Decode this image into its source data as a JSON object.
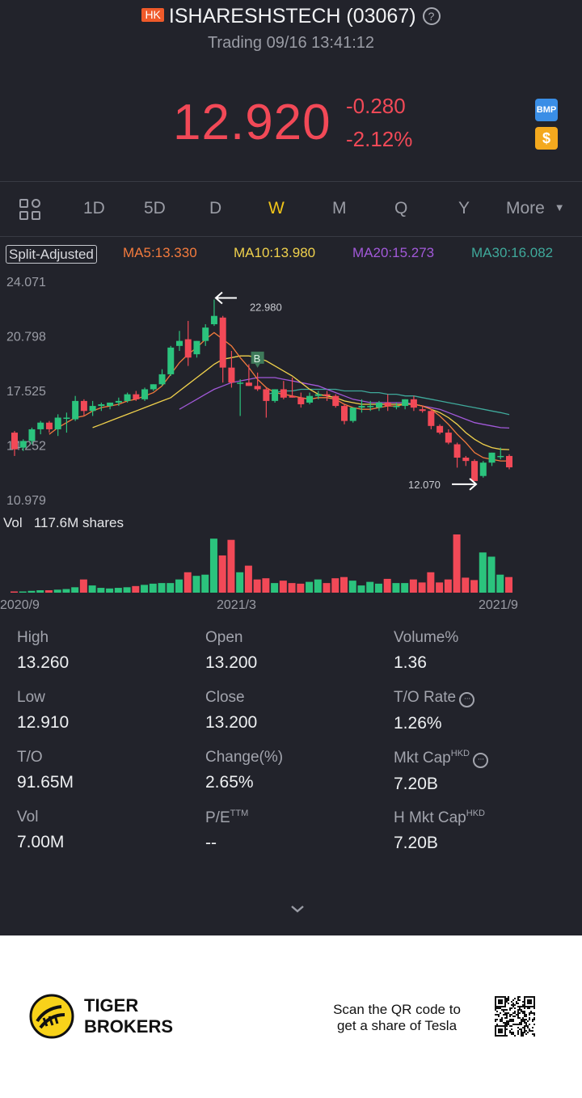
{
  "header": {
    "market_badge": "HK",
    "title": "ISHARESHSTECH (03067)",
    "status": "Trading 09/16 13:41:12",
    "price": "12.920",
    "change": "-0.280",
    "change_pct": "-2.12%",
    "bmp_label": "BMP",
    "dollar_label": "$"
  },
  "tabs": [
    "1D",
    "5D",
    "D",
    "W",
    "M",
    "Q",
    "Y",
    "More"
  ],
  "active_tab": "W",
  "indicators": {
    "split": "Split-Adjusted",
    "ma5": "MA5:13.330",
    "ma10": "MA10:13.980",
    "ma20": "MA20:15.273",
    "ma30": "MA30:16.082"
  },
  "chart_data": {
    "type": "candlestick",
    "y_ticks": [
      "24.071",
      "20.798",
      "17.525",
      "14.252",
      "10.979"
    ],
    "ylim": [
      10.979,
      24.071
    ],
    "high_label": "22.980",
    "low_label": "12.070",
    "buy_marker": "B",
    "x_ticks": [
      "2020/9",
      "2021/3",
      "2021/9"
    ],
    "colors": {
      "up": "#2bc37d",
      "down": "#f24957",
      "ma5": "#f47b3d",
      "ma10": "#f0d14c",
      "ma20": "#a259d9",
      "ma30": "#3fa99b"
    },
    "candles": [
      [
        15.0,
        15.1,
        13.6,
        14.0
      ],
      [
        14.1,
        14.6,
        13.9,
        14.5
      ],
      [
        14.5,
        15.3,
        14.3,
        15.2
      ],
      [
        15.2,
        15.7,
        14.9,
        15.6
      ],
      [
        15.6,
        15.7,
        15.0,
        15.2
      ],
      [
        15.2,
        16.1,
        14.8,
        15.9
      ],
      [
        15.9,
        16.2,
        15.0,
        15.9
      ],
      [
        15.8,
        17.2,
        15.7,
        16.9
      ],
      [
        16.9,
        17.0,
        16.0,
        16.3
      ],
      [
        16.3,
        16.9,
        16.0,
        16.6
      ],
      [
        16.6,
        16.8,
        16.3,
        16.7
      ],
      [
        16.6,
        16.8,
        16.4,
        16.8
      ],
      [
        16.8,
        17.1,
        16.6,
        16.9
      ],
      [
        16.9,
        17.4,
        16.8,
        17.3
      ],
      [
        17.3,
        17.5,
        16.9,
        17.0
      ],
      [
        17.0,
        17.7,
        16.9,
        17.6
      ],
      [
        17.6,
        17.9,
        17.5,
        17.9
      ],
      [
        17.9,
        18.8,
        17.8,
        18.5
      ],
      [
        18.5,
        20.2,
        18.4,
        20.1
      ],
      [
        20.2,
        21.1,
        19.9,
        20.5
      ],
      [
        20.6,
        21.7,
        19.0,
        19.5
      ],
      [
        19.7,
        20.5,
        19.5,
        20.5
      ],
      [
        20.5,
        21.5,
        20.2,
        21.3
      ],
      [
        21.5,
        22.98,
        21.4,
        22.0
      ],
      [
        21.9,
        22.0,
        18.0,
        18.9
      ],
      [
        18.9,
        19.9,
        17.7,
        18.0
      ],
      [
        18.0,
        18.2,
        16.0,
        18.0
      ],
      [
        18.0,
        19.1,
        17.8,
        17.8
      ],
      [
        17.8,
        18.6,
        17.5,
        17.6
      ],
      [
        17.6,
        17.7,
        15.9,
        16.9
      ],
      [
        16.9,
        17.6,
        16.8,
        17.6
      ],
      [
        17.6,
        18.1,
        17.0,
        17.1
      ],
      [
        17.2,
        18.3,
        17.1,
        17.1
      ],
      [
        17.1,
        17.4,
        16.5,
        16.7
      ],
      [
        16.8,
        17.4,
        16.7,
        17.2
      ],
      [
        17.2,
        17.5,
        17.0,
        17.3
      ],
      [
        17.3,
        17.5,
        16.9,
        17.2
      ],
      [
        17.2,
        17.3,
        16.5,
        16.6
      ],
      [
        16.6,
        16.7,
        15.5,
        15.7
      ],
      [
        15.7,
        16.5,
        15.6,
        16.5
      ],
      [
        16.5,
        17.0,
        16.2,
        16.6
      ],
      [
        16.6,
        16.9,
        16.3,
        16.6
      ],
      [
        16.5,
        16.9,
        16.3,
        16.8
      ],
      [
        16.8,
        17.3,
        16.3,
        16.6
      ],
      [
        16.6,
        16.8,
        16.4,
        16.6
      ],
      [
        16.6,
        17.0,
        16.4,
        17.0
      ],
      [
        17.0,
        17.2,
        16.3,
        16.5
      ],
      [
        16.4,
        16.6,
        16.2,
        16.3
      ],
      [
        16.3,
        16.4,
        15.2,
        15.4
      ],
      [
        15.4,
        15.5,
        14.9,
        15.0
      ],
      [
        15.0,
        15.2,
        14.3,
        14.4
      ],
      [
        14.3,
        14.4,
        12.9,
        13.5
      ],
      [
        13.5,
        13.6,
        13.0,
        13.3
      ],
      [
        13.3,
        13.4,
        12.1,
        12.1
      ],
      [
        12.4,
        13.3,
        12.3,
        13.2
      ],
      [
        13.2,
        13.8,
        13.0,
        13.8
      ],
      [
        13.6,
        14.1,
        13.4,
        13.6
      ],
      [
        13.6,
        13.7,
        12.8,
        12.92
      ]
    ],
    "ma5": [
      null,
      null,
      null,
      null,
      14.9,
      15.3,
      15.6,
      15.9,
      16.0,
      16.3,
      16.5,
      16.6,
      16.7,
      16.9,
      17.0,
      17.2,
      17.4,
      17.8,
      18.5,
      19.2,
      19.7,
      20.1,
      20.6,
      21.0,
      20.6,
      20.2,
      19.5,
      18.9,
      18.2,
      17.7,
      17.4,
      17.3,
      17.2,
      17.1,
      17.0,
      17.1,
      17.1,
      17.0,
      16.7,
      16.5,
      16.4,
      16.4,
      16.5,
      16.6,
      16.6,
      16.7,
      16.7,
      16.6,
      16.4,
      16.0,
      15.5,
      14.9,
      14.4,
      13.8,
      13.5,
      13.4,
      13.3,
      13.3
    ],
    "ma10": [
      null,
      null,
      null,
      null,
      null,
      null,
      null,
      null,
      null,
      15.3,
      15.5,
      15.7,
      15.9,
      16.1,
      16.3,
      16.5,
      16.7,
      16.9,
      17.1,
      17.5,
      17.9,
      18.3,
      18.7,
      19.1,
      19.4,
      19.5,
      19.6,
      19.6,
      19.5,
      19.3,
      19.0,
      18.7,
      18.4,
      18.0,
      17.6,
      17.3,
      17.2,
      17.1,
      16.9,
      16.8,
      16.7,
      16.7,
      16.7,
      16.7,
      16.7,
      16.7,
      16.7,
      16.6,
      16.4,
      16.2,
      15.9,
      15.5,
      15.0,
      14.6,
      14.3,
      14.1,
      14.0,
      13.98
    ],
    "ma20": [
      null,
      null,
      null,
      null,
      null,
      null,
      null,
      null,
      null,
      null,
      null,
      null,
      null,
      null,
      null,
      null,
      null,
      null,
      null,
      16.4,
      16.7,
      17.0,
      17.3,
      17.6,
      17.8,
      18.0,
      18.1,
      18.2,
      18.3,
      18.3,
      18.3,
      18.2,
      18.1,
      18.0,
      17.9,
      17.8,
      17.6,
      17.4,
      17.2,
      17.0,
      16.9,
      16.8,
      16.8,
      16.8,
      16.8,
      16.8,
      16.7,
      16.6,
      16.5,
      16.4,
      16.2,
      16.0,
      15.8,
      15.6,
      15.5,
      15.4,
      15.3,
      15.273
    ],
    "ma30": [
      null,
      null,
      null,
      null,
      null,
      null,
      null,
      null,
      null,
      null,
      null,
      null,
      null,
      null,
      null,
      null,
      null,
      null,
      null,
      null,
      null,
      null,
      null,
      null,
      null,
      null,
      null,
      null,
      null,
      17.3,
      17.4,
      17.5,
      17.5,
      17.6,
      17.6,
      17.6,
      17.6,
      17.6,
      17.5,
      17.5,
      17.5,
      17.4,
      17.4,
      17.3,
      17.3,
      17.2,
      17.2,
      17.1,
      17.0,
      16.9,
      16.8,
      16.7,
      16.6,
      16.5,
      16.4,
      16.3,
      16.2,
      16.082
    ],
    "volume_label": "Vol",
    "volume_value": "117.6M shares",
    "volumes": [
      2,
      2,
      3,
      4,
      4,
      5,
      6,
      9,
      22,
      12,
      8,
      7,
      8,
      9,
      11,
      13,
      15,
      16,
      16,
      22,
      34,
      28,
      30,
      90,
      62,
      88,
      34,
      45,
      22,
      24,
      16,
      20,
      16,
      15,
      18,
      22,
      16,
      24,
      26,
      20,
      12,
      18,
      15,
      23,
      16,
      16,
      22,
      17,
      34,
      17,
      22,
      97,
      25,
      21,
      67,
      60,
      30,
      26
    ]
  },
  "stats": [
    {
      "label": "High",
      "value": "13.260"
    },
    {
      "label": "Open",
      "value": "13.200"
    },
    {
      "label": "Volume%",
      "value": "1.36"
    },
    {
      "label": "Low",
      "value": "12.910"
    },
    {
      "label": "Close",
      "value": "13.200"
    },
    {
      "label": "T/O Rate",
      "value": "1.26%"
    },
    {
      "label": "T/O",
      "value": "91.65M"
    },
    {
      "label": "Change(%)",
      "value": "2.65%"
    },
    {
      "label": "Mkt Cap",
      "sup": "HKD",
      "value": "7.20B"
    },
    {
      "label": "Vol",
      "value": "7.00M"
    },
    {
      "label": "P/E",
      "sup": "TTM",
      "value": "--"
    },
    {
      "label": "H Mkt Cap",
      "sup": "HKD",
      "value": "7.20B"
    }
  ],
  "footer": {
    "brand_line1": "TIGER",
    "brand_line2": "BROKERS",
    "scan_line1": "Scan the QR code to",
    "scan_line2": "get a share of Tesla"
  }
}
